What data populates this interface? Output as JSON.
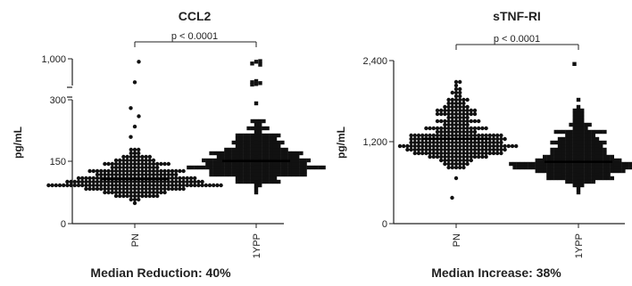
{
  "chart_data": [
    {
      "type": "scatter",
      "title": "CCL2",
      "ylabel": "pg/mL",
      "categories": [
        "PN",
        "1YPP"
      ],
      "axis": {
        "segments": [
          {
            "range": [
              0,
              300
            ],
            "ticks": [
              0,
              150,
              300
            ],
            "tick_labels": [
              "0",
              "150",
              "300"
            ]
          },
          {
            "range": [
              300,
              1000
            ],
            "ticks": [
              1000
            ],
            "tick_labels": [
              "1,000"
            ]
          }
        ],
        "broken": true
      },
      "significance": "p < 0.0001",
      "caption": "Median Reduction: 40%",
      "series": [
        {
          "name": "PN",
          "marker": "circle",
          "median": 108,
          "n": 280,
          "spread": [
            40,
            200
          ],
          "outliers": [
            210,
            235,
            260,
            280,
            600,
            950
          ]
        },
        {
          "name": "1YPP",
          "marker": "square",
          "median": 152,
          "n": 300,
          "spread": [
            65,
            290
          ],
          "outliers": [
            560,
            570,
            585,
            600,
            620,
            900,
            920,
            950,
            960
          ]
        }
      ]
    },
    {
      "type": "scatter",
      "title": "sTNF-RI",
      "ylabel": "pg/mL",
      "categories": [
        "PN",
        "1YPP"
      ],
      "axis": {
        "segments": [
          {
            "range": [
              0,
              2400
            ],
            "ticks": [
              0,
              1200,
              2400
            ],
            "tick_labels": [
              "0",
              "1,200",
              "2,400"
            ]
          }
        ],
        "broken": false
      },
      "significance": "p < 0.0001",
      "caption": "Median Increase: 38%",
      "series": [
        {
          "name": "PN",
          "marker": "circle",
          "median": 1250,
          "n": 300,
          "spread": [
            600,
            2250
          ],
          "outliers": [
            380
          ]
        },
        {
          "name": "1YPP",
          "marker": "square",
          "median": 910,
          "n": 300,
          "spread": [
            380,
            2000
          ],
          "outliers": [
            2350
          ]
        }
      ]
    }
  ]
}
